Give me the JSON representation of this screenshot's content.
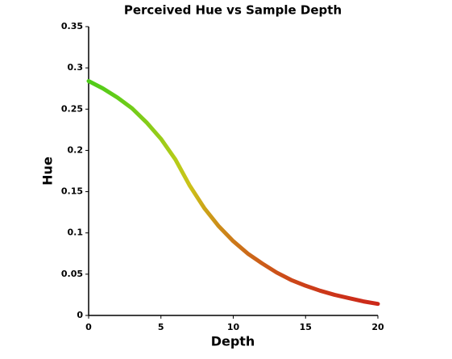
{
  "chart_data": {
    "type": "line",
    "title": "Perceived Hue vs Sample Depth",
    "x_label": "Depth",
    "y_label": "Hue",
    "x": [
      0,
      1,
      2,
      3,
      4,
      5,
      6,
      7,
      8,
      9,
      10,
      11,
      12,
      13,
      14,
      15,
      16,
      17,
      18,
      19,
      20
    ],
    "series": [
      {
        "values": [
          0.284,
          0.275,
          0.264,
          0.251,
          0.234,
          0.214,
          0.189,
          0.157,
          0.13,
          0.108,
          0.09,
          0.075,
          0.063,
          0.052,
          0.043,
          0.036,
          0.03,
          0.025,
          0.021,
          0.017,
          0.014
        ]
      }
    ],
    "line_color": "hue",
    "xlim": [
      0,
      20
    ],
    "xticks": [
      0,
      5,
      10,
      15,
      20
    ],
    "ylim": [
      0,
      0.35
    ],
    "yticks": [
      0,
      0.05,
      0.1,
      0.15,
      0.2,
      0.25,
      0.3,
      0.35
    ],
    "grid": false
  }
}
